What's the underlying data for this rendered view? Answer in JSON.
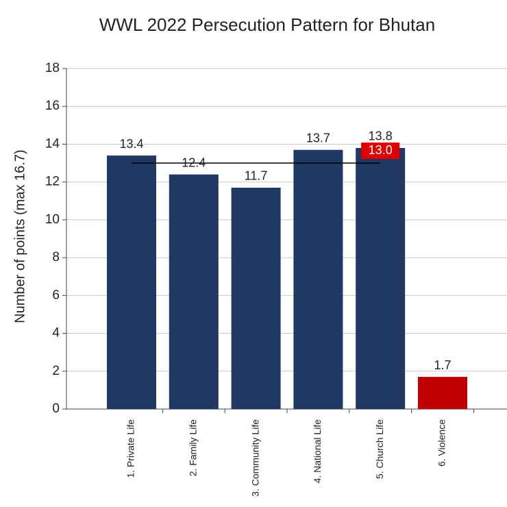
{
  "chart_data": {
    "type": "bar",
    "title": "WWL 2022 Persecution Pattern for Bhutan",
    "ylabel": "Number of points (max 16.7)",
    "categories": [
      "1. Private Life",
      "2. Family Life",
      "3. Community Life",
      "4. National Life",
      "5. Church Life",
      "6. Violence"
    ],
    "values": [
      13.4,
      12.4,
      11.7,
      13.7,
      13.8,
      1.7
    ],
    "colors": [
      "#1f3864",
      "#1f3864",
      "#1f3864",
      "#1f3864",
      "#1f3864",
      "#c00000"
    ],
    "ylim": [
      0,
      18
    ],
    "yticks": [
      0,
      2,
      4,
      6,
      8,
      10,
      12,
      14,
      16,
      18
    ],
    "grid": true,
    "average_line": {
      "value": 13,
      "label": "13.0",
      "color": "#e00000"
    }
  }
}
